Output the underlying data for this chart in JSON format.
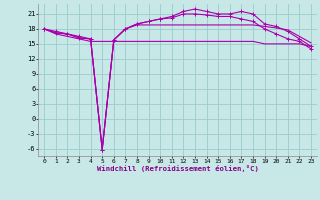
{
  "x": [
    0,
    1,
    2,
    3,
    4,
    5,
    6,
    7,
    8,
    9,
    10,
    11,
    12,
    13,
    14,
    15,
    16,
    17,
    18,
    19,
    20,
    21,
    22,
    23
  ],
  "line1_nomark": [
    18,
    17.2,
    17,
    16.2,
    16,
    -6.2,
    15.8,
    18,
    18.8,
    18.8,
    18.8,
    18.8,
    18.8,
    18.8,
    18.8,
    18.8,
    18.8,
    18.8,
    18.8,
    18.5,
    18.2,
    17.8,
    16.5,
    15.2
  ],
  "line2_mark": [
    18,
    17.2,
    17,
    16.2,
    16,
    -6.2,
    15.8,
    18,
    19,
    19.5,
    20,
    20.5,
    21.5,
    22,
    21.5,
    21,
    21,
    21.5,
    21,
    19,
    18.5,
    17.5,
    16,
    14.5
  ],
  "line3_mark": [
    18,
    17.5,
    17,
    16.5,
    16,
    -6.2,
    15.8,
    18,
    19,
    19.5,
    20,
    20.2,
    21,
    21,
    20.8,
    20.5,
    20.5,
    20,
    19.5,
    18,
    17,
    16,
    15.5,
    14
  ],
  "line4_nomark": [
    18,
    17,
    16.5,
    16,
    15.5,
    15.5,
    15.5,
    15.5,
    15.5,
    15.5,
    15.5,
    15.5,
    15.5,
    15.5,
    15.5,
    15.5,
    15.5,
    15.5,
    15.5,
    15,
    15,
    15,
    15,
    14.5
  ],
  "bg_color": "#c8e8e8",
  "line_color": "#aa00aa",
  "grid_color": "#99cccc",
  "xlabel": "Windchill (Refroidissement éolien,°C)",
  "xlim": [
    -0.5,
    23.5
  ],
  "ylim": [
    -7.5,
    23
  ],
  "yticks": [
    -6,
    -3,
    0,
    3,
    6,
    9,
    12,
    15,
    18,
    21
  ],
  "xticks": [
    0,
    1,
    2,
    3,
    4,
    5,
    6,
    7,
    8,
    9,
    10,
    11,
    12,
    13,
    14,
    15,
    16,
    17,
    18,
    19,
    20,
    21,
    22,
    23
  ]
}
